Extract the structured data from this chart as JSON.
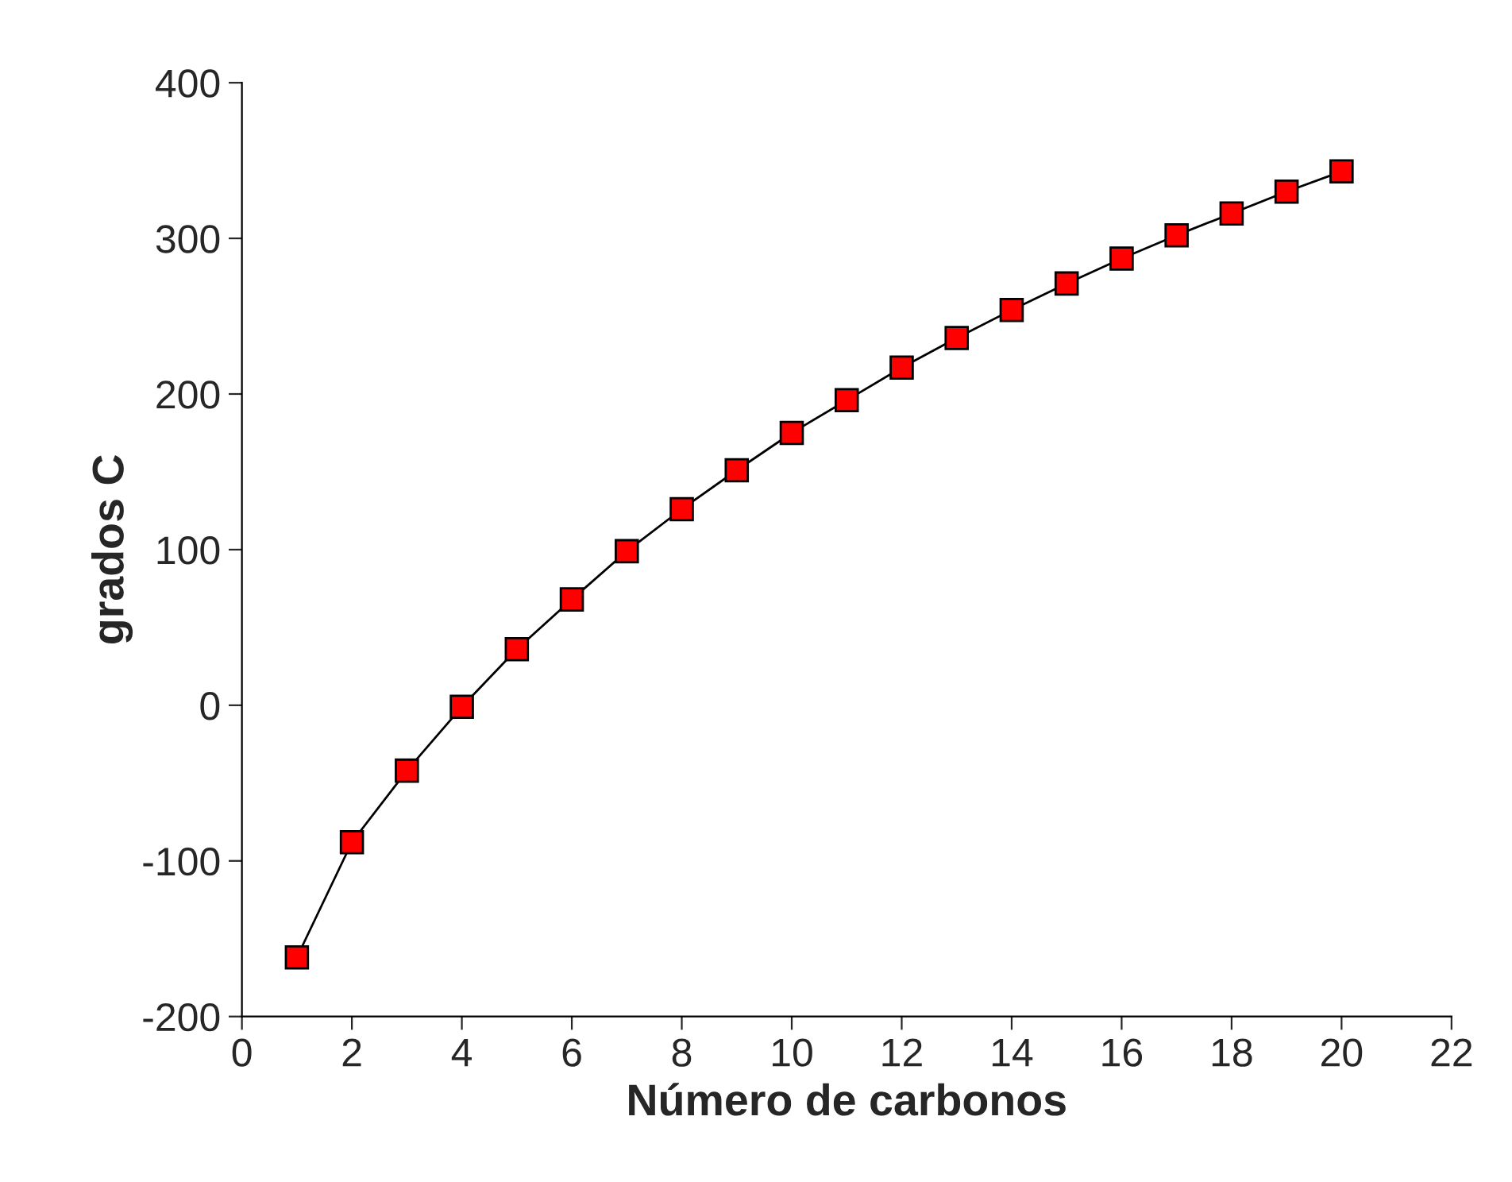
{
  "chart_data": {
    "type": "line",
    "xlabel": "Número de carbonos",
    "ylabel": "grados C",
    "x": [
      1,
      2,
      3,
      4,
      5,
      6,
      7,
      8,
      9,
      10,
      11,
      12,
      13,
      14,
      15,
      16,
      17,
      18,
      19,
      20
    ],
    "series": [
      {
        "color": "#ff0000",
        "values": [
          -162,
          -88,
          -42,
          -1,
          36,
          68,
          99,
          126,
          151,
          175,
          196,
          217,
          236,
          254,
          271,
          287,
          302,
          316,
          330,
          343
        ]
      }
    ],
    "xlim": [
      0,
      22
    ],
    "xticks": [
      0,
      2,
      4,
      6,
      8,
      10,
      12,
      14,
      16,
      18,
      20,
      22
    ],
    "ylim": [
      -200,
      400
    ],
    "yticks": [
      -200,
      -100,
      0,
      100,
      200,
      300,
      400
    ],
    "grid": false,
    "legend": false,
    "marker": "square",
    "line_style": "solid"
  }
}
